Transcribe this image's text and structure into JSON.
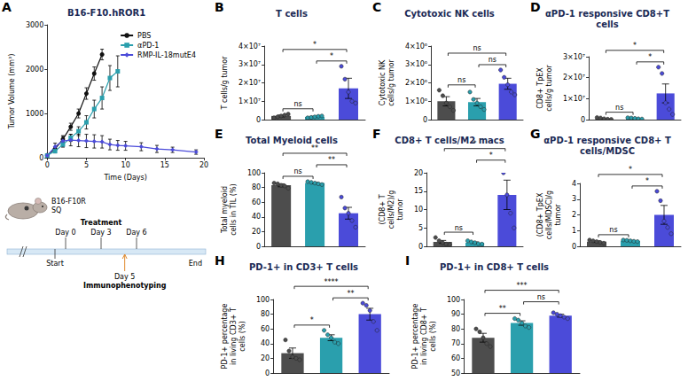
{
  "chart_data": [
    {
      "panel": "A",
      "type": "line",
      "title": "B16-F10.hROR1",
      "x_label": "Time (Days)",
      "y_label": "Tumor Volume (mm³)",
      "xlim": [
        0,
        20
      ],
      "xticks": [
        0,
        5,
        10,
        15,
        20
      ],
      "ylim": [
        0,
        3000
      ],
      "yticks": [
        0,
        1000,
        2000,
        3000
      ],
      "grid": false,
      "legend": "upper right",
      "series": [
        {
          "name": "PBS",
          "color": "#111111",
          "marker": "circle",
          "x": [
            0,
            1,
            2,
            3,
            4,
            5,
            6,
            7
          ],
          "values": [
            60,
            200,
            420,
            700,
            1000,
            1450,
            1900,
            2330
          ],
          "errors": [
            20,
            40,
            60,
            80,
            100,
            130,
            150,
            120
          ]
        },
        {
          "name": "αPD-1",
          "color": "#2a9fad",
          "marker": "square",
          "x": [
            0,
            1,
            2,
            3,
            4,
            5,
            6,
            7,
            8,
            9
          ],
          "values": [
            50,
            150,
            300,
            450,
            600,
            800,
            1100,
            1350,
            1800,
            1950
          ],
          "errors": [
            20,
            40,
            60,
            80,
            100,
            150,
            200,
            250,
            280,
            350
          ]
        },
        {
          "name": "RMP-IL-18mutE4",
          "color": "#4b4bd9",
          "marker": "diamond",
          "x": [
            0,
            1,
            2,
            3,
            4,
            5,
            6,
            7,
            8,
            9,
            10,
            12,
            14,
            16,
            19
          ],
          "values": [
            50,
            250,
            380,
            400,
            390,
            380,
            370,
            360,
            300,
            280,
            270,
            250,
            200,
            180,
            130
          ],
          "errors": [
            20,
            80,
            120,
            130,
            140,
            150,
            150,
            140,
            120,
            110,
            100,
            90,
            80,
            60,
            50
          ]
        }
      ]
    },
    {
      "panel": "B",
      "type": "bar",
      "title": "T cells",
      "y_label": "T cells/g tumor",
      "categories": [
        null,
        null,
        null
      ],
      "colors": [
        "#4d4d4d",
        "#2a9fad",
        "#4b4bd9"
      ],
      "values": [
        2000000,
        1500000,
        17000000
      ],
      "errors": [
        500000,
        300000,
        5500000
      ],
      "points": [
        [
          1000000,
          1500000,
          2000000,
          2500000,
          3000000
        ],
        [
          1000000,
          1200000,
          1500000,
          1800000,
          2000000
        ],
        [
          29000000,
          22000000,
          15000000,
          10000000,
          9000000
        ]
      ],
      "ylim": [
        0,
        40000000
      ],
      "yticks": [
        0,
        {
          "value": 10000000,
          "label": "1×10⁷"
        },
        {
          "value": 20000000,
          "label": "2×10⁷"
        },
        {
          "value": 30000000,
          "label": "3×10⁷"
        },
        {
          "value": 40000000,
          "label": "4×10⁷"
        }
      ],
      "grid": false,
      "tick_labels": "y",
      "significance": [
        {
          "from": 0,
          "to": 1,
          "label": "ns"
        },
        {
          "from": 1,
          "to": 2,
          "label": "*"
        },
        {
          "from": 0,
          "to": 2,
          "label": "*"
        }
      ]
    },
    {
      "panel": "C",
      "type": "bar",
      "title": "Cytotoxic NK cells",
      "y_label": "Cytotoxic NK cells/g tumor",
      "categories": [
        null,
        null,
        null
      ],
      "colors": [
        "#4d4d4d",
        "#2a9fad",
        "#4b4bd9"
      ],
      "values": [
        1000000,
        950000,
        1950000
      ],
      "errors": [
        250000,
        200000,
        300000
      ],
      "points": [
        [
          1600000,
          1300000,
          900000,
          700000,
          500000
        ],
        [
          1500000,
          1100000,
          900000,
          700000,
          550000
        ],
        [
          2700000,
          2300000,
          1900000,
          1500000,
          1350000
        ]
      ],
      "ylim": [
        0,
        4000000
      ],
      "yticks": [
        0,
        {
          "value": 1000000,
          "label": "1×10⁶"
        },
        {
          "value": 2000000,
          "label": "2×10⁶"
        },
        {
          "value": 3000000,
          "label": "3×10⁶"
        },
        {
          "value": 4000000,
          "label": "4×10⁶"
        }
      ],
      "grid": false,
      "tick_labels": "y",
      "significance": [
        {
          "from": 0,
          "to": 1,
          "label": "ns"
        },
        {
          "from": 1,
          "to": 2,
          "label": "ns"
        },
        {
          "from": 0,
          "to": 2,
          "label": "ns"
        }
      ]
    },
    {
      "panel": "D",
      "type": "bar",
      "title": "αPD-1 responsive CD8+T cells",
      "y_label": "CD8+ TpEX cells/g tumor",
      "categories": [
        null,
        null,
        null
      ],
      "colors": [
        "#4d4d4d",
        "#2a9fad",
        "#4b4bd9"
      ],
      "values": [
        500000,
        600000,
        12500000
      ],
      "errors": [
        200000,
        150000,
        4500000
      ],
      "points": [
        [
          1000000,
          800000,
          400000,
          200000,
          100000
        ],
        [
          900000,
          800000,
          600000,
          400000,
          300000
        ],
        [
          25000000,
          22000000,
          8000000,
          5000000,
          2500000
        ]
      ],
      "ylim": [
        0,
        30000000
      ],
      "yticks": [
        0,
        {
          "value": 10000000,
          "label": "1×10⁷"
        },
        {
          "value": 20000000,
          "label": "2×10⁷"
        },
        {
          "value": 30000000,
          "label": "3×10⁷"
        }
      ],
      "grid": false,
      "tick_labels": "y",
      "significance": [
        {
          "from": 0,
          "to": 1,
          "label": "ns"
        },
        {
          "from": 1,
          "to": 2,
          "label": "*"
        },
        {
          "from": 0,
          "to": 2,
          "label": "*"
        }
      ]
    },
    {
      "panel": "E",
      "type": "bar",
      "title": "Total Myeloid cells",
      "y_label": "Total myeloid cells in TIL (%)",
      "categories": [
        null,
        null,
        null
      ],
      "colors": [
        "#4d4d4d",
        "#2a9fad",
        "#4b4bd9"
      ],
      "values": [
        83,
        86,
        45
      ],
      "errors": [
        2,
        1,
        8
      ],
      "points": [
        [
          86,
          85,
          83,
          82,
          79
        ],
        [
          88,
          87,
          86,
          85,
          84
        ],
        [
          67,
          52,
          45,
          35,
          26
        ]
      ],
      "ylim": [
        0,
        100
      ],
      "yticks": [
        0,
        20,
        40,
        60,
        80,
        100
      ],
      "grid": false,
      "tick_labels": "y",
      "significance": [
        {
          "from": 0,
          "to": 1,
          "label": "ns"
        },
        {
          "from": 1,
          "to": 2,
          "label": "**"
        },
        {
          "from": 0,
          "to": 2,
          "label": "**"
        }
      ]
    },
    {
      "panel": "F",
      "type": "bar",
      "title": "CD8+ T cells/M2 macs",
      "y_label": "(CD8+ T cells/M2)/g tumor",
      "categories": [
        null,
        null,
        null
      ],
      "colors": [
        "#4d4d4d",
        "#2a9fad",
        "#4b4bd9"
      ],
      "values": [
        1.2,
        1.0,
        14
      ],
      "errors": [
        0.4,
        0.2,
        4
      ],
      "points": [
        [
          2.4,
          1.5,
          1.0,
          0.6,
          0.5
        ],
        [
          1.5,
          1.2,
          1.0,
          0.7,
          0.6
        ],
        [
          22,
          20,
          14,
          9,
          5
        ]
      ],
      "ylim": [
        0,
        20
      ],
      "yticks": [
        0,
        5,
        10,
        15,
        20
      ],
      "grid": false,
      "tick_labels": "y",
      "significance": [
        {
          "from": 0,
          "to": 1,
          "label": "ns"
        },
        {
          "from": 1,
          "to": 2,
          "label": "*"
        },
        {
          "from": 0,
          "to": 2,
          "label": "*"
        }
      ]
    },
    {
      "panel": "G",
      "type": "bar",
      "title": "αPD-1 responsive CD8+ T cells/MDSC",
      "y_label": "(CD8+ TpEX cells/MDSC)/g tumor",
      "categories": [
        null,
        null,
        null
      ],
      "colors": [
        "#4d4d4d",
        "#2a9fad",
        "#4b4bd9"
      ],
      "values": [
        0.3,
        0.35,
        2.0
      ],
      "errors": [
        0.05,
        0.03,
        0.6
      ],
      "points": [
        [
          0.4,
          0.35,
          0.3,
          0.25,
          0.2
        ],
        [
          0.4,
          0.38,
          0.35,
          0.32,
          0.3
        ],
        [
          3.5,
          2.9,
          1.6,
          1.2,
          0.8
        ]
      ],
      "ylim": [
        0,
        4
      ],
      "yticks": [
        0,
        1,
        2,
        3,
        4
      ],
      "grid": false,
      "tick_labels": "y",
      "significance": [
        {
          "from": 0,
          "to": 1,
          "label": "ns"
        },
        {
          "from": 1,
          "to": 2,
          "label": "*"
        },
        {
          "from": 0,
          "to": 2,
          "label": "*"
        }
      ]
    },
    {
      "panel": "H",
      "type": "bar",
      "title": "PD-1+ in CD3+ T cells",
      "y_label": "PD-1+ percentage in living CD3+ T cells (%)",
      "categories": [
        null,
        null,
        null
      ],
      "colors": [
        "#4d4d4d",
        "#2a9fad",
        "#4b4bd9"
      ],
      "values": [
        27,
        48,
        80
      ],
      "errors": [
        7,
        4,
        8
      ],
      "points": [
        [
          45,
          30,
          22,
          20,
          18
        ],
        [
          58,
          52,
          48,
          42,
          40
        ],
        [
          95,
          92,
          85,
          70,
          58
        ]
      ],
      "ylim": [
        0,
        100
      ],
      "yticks": [
        0,
        20,
        40,
        60,
        80,
        100
      ],
      "grid": false,
      "tick_labels": "y",
      "significance": [
        {
          "from": 0,
          "to": 1,
          "label": "*"
        },
        {
          "from": 1,
          "to": 2,
          "label": "**"
        },
        {
          "from": 0,
          "to": 2,
          "label": "****"
        }
      ]
    },
    {
      "panel": "I",
      "type": "bar",
      "title": "PD-1+ in CD8+ T cells",
      "y_label": "PD-1+ percentage in living CD8+ T cells (%)",
      "categories": [
        null,
        null,
        null
      ],
      "colors": [
        "#4d4d4d",
        "#2a9fad",
        "#4b4bd9"
      ],
      "values": [
        74,
        84,
        89
      ],
      "errors": [
        3,
        1.5,
        1
      ],
      "points": [
        [
          80,
          78,
          74,
          70,
          68
        ],
        [
          87,
          86,
          84,
          82,
          81
        ],
        [
          91,
          90,
          89,
          88,
          87
        ]
      ],
      "ylim": [
        50,
        100
      ],
      "yticks": [
        50,
        60,
        70,
        80,
        90,
        100
      ],
      "grid": false,
      "tick_labels": "y",
      "significance": [
        {
          "from": 0,
          "to": 1,
          "label": "**"
        },
        {
          "from": 1,
          "to": 2,
          "label": "ns"
        },
        {
          "from": 0,
          "to": 2,
          "label": "***"
        }
      ]
    }
  ],
  "schematic": {
    "injection": [
      "B16-F10R",
      "SQ"
    ],
    "timeline": {
      "start": "Start",
      "end": "End",
      "above_heading": "Treatment",
      "above_marks": [
        "Day 0",
        "Day 3",
        "Day 6"
      ],
      "below_mark": "Day 5",
      "below_heading": "Immunophenotyping"
    }
  }
}
